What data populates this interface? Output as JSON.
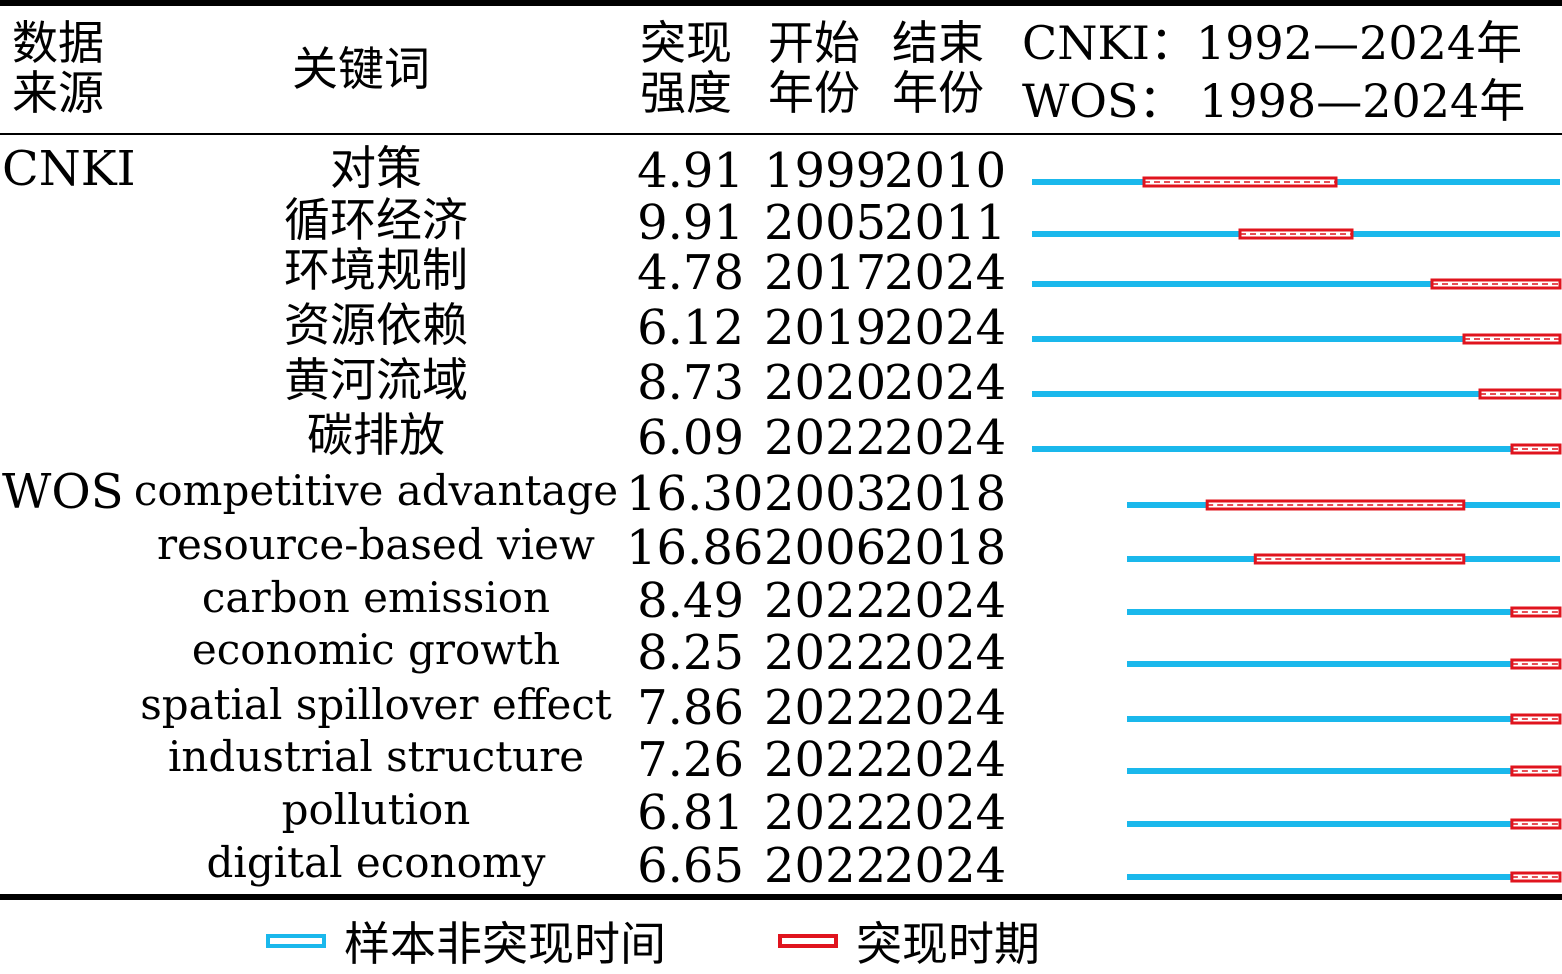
{
  "headers": {
    "source": "数据\n来源",
    "source_line1": "数据",
    "source_line2": "来源",
    "keyword": "关键词",
    "strength_line1": "突现",
    "strength_line2": "强度",
    "begin_line1": "开始",
    "begin_line2": "年份",
    "end_line1": "结束",
    "end_line2": "年份",
    "range_cnki": "CNKI：1992—2024年",
    "range_wos": "WOS：  1998—2024年"
  },
  "legend": {
    "sample_label": "样本非突现时间",
    "burst_label": "突现时期"
  },
  "colors": {
    "sample": "#1ab8ec",
    "burst": "#e0141e",
    "text": "#000000"
  },
  "chart_data": {
    "type": "table",
    "groups": [
      {
        "source": "CNKI",
        "range": [
          1992,
          2024
        ],
        "rows": [
          {
            "keyword": "对策",
            "strength": "4.91",
            "begin": "1999",
            "end": "2010"
          },
          {
            "keyword": "循环经济",
            "strength": "9.91",
            "begin": "2005",
            "end": "2011"
          },
          {
            "keyword": "环境规制",
            "strength": "4.78",
            "begin": "2017",
            "end": "2024"
          },
          {
            "keyword": "资源依赖",
            "strength": "6.12",
            "begin": "2019",
            "end": "2024"
          },
          {
            "keyword": "黄河流域",
            "strength": "8.73",
            "begin": "2020",
            "end": "2024"
          },
          {
            "keyword": "碳排放",
            "strength": "6.09",
            "begin": "2022",
            "end": "2024"
          }
        ]
      },
      {
        "source": "WOS",
        "range": [
          1998,
          2024
        ],
        "rows": [
          {
            "keyword": "competitive advantage",
            "strength": "16.30",
            "begin": "2003",
            "end": "2018"
          },
          {
            "keyword": "resource-based view",
            "strength": "16.86",
            "begin": "2006",
            "end": "2018"
          },
          {
            "keyword": "carbon emission",
            "strength": "8.49",
            "begin": "2022",
            "end": "2024"
          },
          {
            "keyword": "economic growth",
            "strength": "8.25",
            "begin": "2022",
            "end": "2024"
          },
          {
            "keyword": "spatial spillover effect",
            "strength": "7.86",
            "begin": "2022",
            "end": "2024"
          },
          {
            "keyword": "industrial structure",
            "strength": "7.26",
            "begin": "2022",
            "end": "2024"
          },
          {
            "keyword": "pollution",
            "strength": "6.81",
            "begin": "2022",
            "end": "2024"
          },
          {
            "keyword": "digital economy",
            "strength": "6.65",
            "begin": "2022",
            "end": "2024"
          }
        ]
      }
    ]
  }
}
